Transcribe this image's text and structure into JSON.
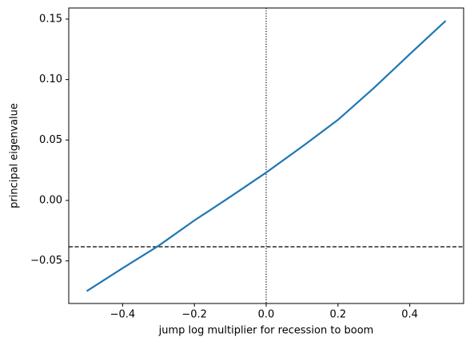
{
  "chart_data": {
    "type": "line",
    "xlabel": "jump log multiplier for recession to boom",
    "ylabel": "principal eigenvalue",
    "x": [
      -0.5,
      -0.4,
      -0.3,
      -0.2,
      -0.1,
      0.0,
      0.1,
      0.2,
      0.3,
      0.4,
      0.5
    ],
    "series": [
      {
        "color": "#1f77b4",
        "values": [
          -0.075,
          -0.056,
          -0.0375,
          -0.0165,
          0.003,
          0.0231,
          0.0445,
          0.0667,
          0.093,
          0.121,
          0.1486
        ]
      }
    ],
    "xlim": [
      -0.55,
      0.55
    ],
    "ylim": [
      -0.0852,
      0.1592
    ],
    "xticks": [
      {
        "value": -0.4,
        "label": "−0.4"
      },
      {
        "value": -0.2,
        "label": "−0.2"
      },
      {
        "value": 0,
        "label": "0.0"
      },
      0.2,
      0.4
    ],
    "yticks": [
      {
        "value": -0.05,
        "label": "−0.05"
      },
      {
        "value": 0,
        "label": "0.00"
      },
      {
        "value": 0.05,
        "label": "0.05"
      },
      {
        "value": 0.1,
        "label": "0.10"
      },
      {
        "value": 0.15,
        "label": "0.15"
      }
    ],
    "hline": -0.0383,
    "vline": 0,
    "grid": false
  }
}
